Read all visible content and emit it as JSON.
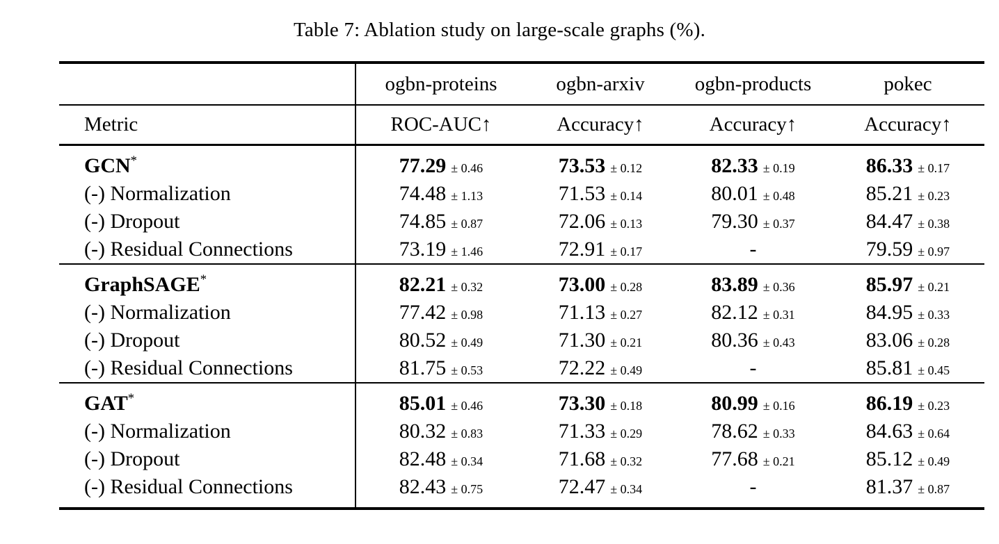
{
  "title": "Table 7: Ablation study on large-scale graphs (%).",
  "table": {
    "dataset_headers": [
      "",
      "ogbn-proteins",
      "ogbn-arxiv",
      "ogbn-products",
      "pokec"
    ],
    "metric_headers": [
      "Metric",
      "ROC-AUC↑",
      "Accuracy↑",
      "Accuracy↑",
      "Accuracy↑"
    ],
    "sections": [
      {
        "rows": [
          {
            "label": "GCN",
            "sup": "*",
            "bold": true,
            "cells": [
              {
                "value": "77.29",
                "pm": "± 0.46"
              },
              {
                "value": "73.53",
                "pm": "± 0.12"
              },
              {
                "value": "82.33",
                "pm": "± 0.19"
              },
              {
                "value": "86.33",
                "pm": "± 0.17"
              }
            ]
          },
          {
            "label": "(-) Normalization",
            "sup": "",
            "bold": false,
            "cells": [
              {
                "value": "74.48",
                "pm": "± 1.13"
              },
              {
                "value": "71.53",
                "pm": "± 0.14"
              },
              {
                "value": "80.01",
                "pm": "± 0.48"
              },
              {
                "value": "85.21",
                "pm": "± 0.23"
              }
            ]
          },
          {
            "label": "(-) Dropout",
            "sup": "",
            "bold": false,
            "cells": [
              {
                "value": "74.85",
                "pm": "± 0.87"
              },
              {
                "value": "72.06",
                "pm": "± 0.13"
              },
              {
                "value": "79.30",
                "pm": "± 0.37"
              },
              {
                "value": "84.47",
                "pm": "± 0.38"
              }
            ]
          },
          {
            "label": "(-) Residual Connections",
            "sup": "",
            "bold": false,
            "cells": [
              {
                "value": "73.19",
                "pm": "± 1.46"
              },
              {
                "value": "72.91",
                "pm": "± 0.17"
              },
              {
                "value": "-",
                "pm": ""
              },
              {
                "value": "79.59",
                "pm": "± 0.97"
              }
            ]
          }
        ]
      },
      {
        "rows": [
          {
            "label": "GraphSAGE",
            "sup": "*",
            "bold": true,
            "cells": [
              {
                "value": "82.21",
                "pm": "± 0.32"
              },
              {
                "value": "73.00",
                "pm": "± 0.28"
              },
              {
                "value": "83.89",
                "pm": "± 0.36"
              },
              {
                "value": "85.97",
                "pm": "± 0.21"
              }
            ]
          },
          {
            "label": "(-) Normalization",
            "sup": "",
            "bold": false,
            "cells": [
              {
                "value": "77.42",
                "pm": "± 0.98"
              },
              {
                "value": "71.13",
                "pm": "± 0.27"
              },
              {
                "value": "82.12",
                "pm": "± 0.31"
              },
              {
                "value": "84.95",
                "pm": "± 0.33"
              }
            ]
          },
          {
            "label": "(-) Dropout",
            "sup": "",
            "bold": false,
            "cells": [
              {
                "value": "80.52",
                "pm": "± 0.49"
              },
              {
                "value": "71.30",
                "pm": "± 0.21"
              },
              {
                "value": "80.36",
                "pm": "± 0.43"
              },
              {
                "value": "83.06",
                "pm": "± 0.28"
              }
            ]
          },
          {
            "label": "(-) Residual Connections",
            "sup": "",
            "bold": false,
            "cells": [
              {
                "value": "81.75",
                "pm": "± 0.53"
              },
              {
                "value": "72.22",
                "pm": "± 0.49"
              },
              {
                "value": "-",
                "pm": ""
              },
              {
                "value": "85.81",
                "pm": "± 0.45"
              }
            ]
          }
        ]
      },
      {
        "rows": [
          {
            "label": "GAT",
            "sup": "*",
            "bold": true,
            "cells": [
              {
                "value": "85.01",
                "pm": "± 0.46"
              },
              {
                "value": "73.30",
                "pm": "± 0.18"
              },
              {
                "value": "80.99",
                "pm": "± 0.16"
              },
              {
                "value": "86.19",
                "pm": "± 0.23"
              }
            ]
          },
          {
            "label": "(-) Normalization",
            "sup": "",
            "bold": false,
            "cells": [
              {
                "value": "80.32",
                "pm": "± 0.83"
              },
              {
                "value": "71.33",
                "pm": "± 0.29"
              },
              {
                "value": "78.62",
                "pm": "± 0.33"
              },
              {
                "value": "84.63",
                "pm": "± 0.64"
              }
            ]
          },
          {
            "label": "(-) Dropout",
            "sup": "",
            "bold": false,
            "cells": [
              {
                "value": "82.48",
                "pm": "± 0.34"
              },
              {
                "value": "71.68",
                "pm": "± 0.32"
              },
              {
                "value": "77.68",
                "pm": "± 0.21"
              },
              {
                "value": "85.12",
                "pm": "± 0.49"
              }
            ]
          },
          {
            "label": "(-) Residual Connections",
            "sup": "",
            "bold": false,
            "cells": [
              {
                "value": "82.43",
                "pm": "± 0.75"
              },
              {
                "value": "72.47",
                "pm": "± 0.34"
              },
              {
                "value": "-",
                "pm": ""
              },
              {
                "value": "81.37",
                "pm": "± 0.87"
              }
            ]
          }
        ]
      }
    ]
  }
}
